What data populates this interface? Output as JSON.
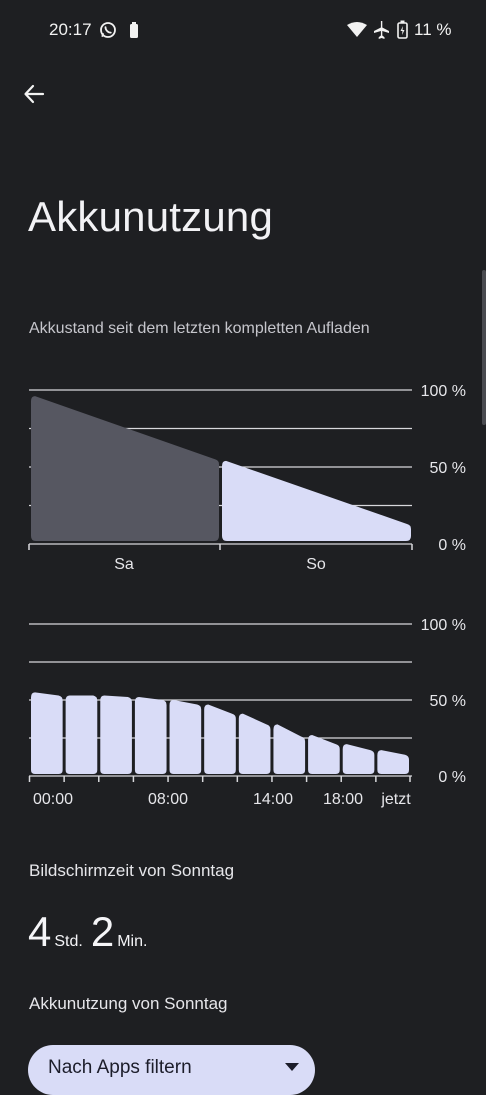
{
  "status_bar": {
    "time": "20:17",
    "battery_text": "11 %",
    "icons": [
      "whatsapp-icon",
      "battery-small-icon",
      "wifi-icon",
      "airplane-icon",
      "battery-charging-icon"
    ]
  },
  "header": {
    "back_icon": "arrow-left-icon",
    "title": "Akkunutzung"
  },
  "battery_section": {
    "description": "Akkustand seit dem letzten kompletten Aufladen"
  },
  "chart_data": [
    {
      "type": "area",
      "categories": [
        "Sa",
        "So"
      ],
      "y_ticks": [
        "100 %",
        "50 %",
        "0 %"
      ],
      "ylim": [
        0,
        100
      ],
      "series": [
        {
          "x": [
            "Sa start",
            "Sa end"
          ],
          "values": [
            96,
            55
          ],
          "color": "#565761"
        },
        {
          "x": [
            "So start",
            "So end"
          ],
          "values": [
            54,
            13
          ],
          "color": "#d9dcf7"
        }
      ],
      "grid": true
    },
    {
      "type": "bar",
      "x_tick_labels": [
        "00:00",
        "08:00",
        "14:00",
        "18:00",
        "jetzt"
      ],
      "y_ticks": [
        "100 %",
        "50 %",
        "0 %"
      ],
      "ylim": [
        0,
        100
      ],
      "series": [
        {
          "values": [
            [
              55,
              53
            ],
            [
              53,
              53
            ],
            [
              53,
              52
            ],
            [
              52,
              50
            ],
            [
              50,
              47
            ],
            [
              47,
              41
            ],
            [
              41,
              34
            ],
            [
              34,
              26
            ],
            [
              27,
              21
            ],
            [
              21,
              17
            ],
            [
              17,
              14
            ]
          ],
          "color": "#d9dcf7"
        }
      ],
      "grid": true
    }
  ],
  "screen_time": {
    "label": "Bildschirmzeit von Sonntag",
    "hours": "4",
    "hours_unit": "Std.",
    "minutes": "2",
    "minutes_unit": "Min."
  },
  "usage": {
    "label": "Akkunutzung von Sonntag",
    "filter_button": "Nach Apps filtern"
  }
}
